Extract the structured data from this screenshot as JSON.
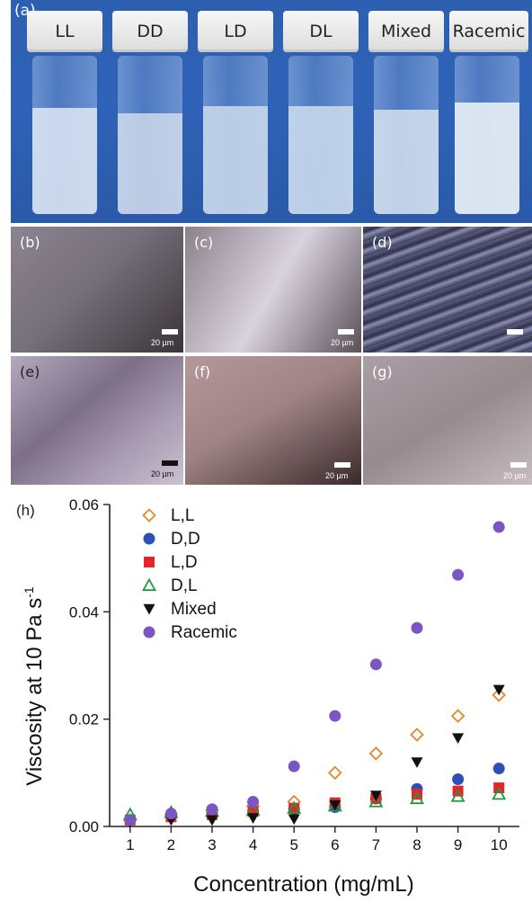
{
  "panel_a": {
    "label": "(a)",
    "vials": [
      {
        "name": "LL",
        "liquid": "#dfe8f4"
      },
      {
        "name": "DD",
        "liquid": "#d6e0ef"
      },
      {
        "name": "LD",
        "liquid": "#c5d6ea"
      },
      {
        "name": "DL",
        "liquid": "#c8d8ec"
      },
      {
        "name": "Mixed",
        "liquid": "#d5e0ef"
      },
      {
        "name": "Racemic",
        "liquid": "#e2eaf3"
      }
    ]
  },
  "micrographs": [
    {
      "label": "(b)",
      "scale": "20 µm",
      "bg": "#6f6772"
    },
    {
      "label": "(c)",
      "scale": "20 µm",
      "bg": "#7a7079"
    },
    {
      "label": "(d)",
      "scale": "",
      "bg": "#3e3f5c"
    },
    {
      "label": "(e)",
      "scale": "20 µm",
      "bg": "#8a7d94"
    },
    {
      "label": "(f)",
      "scale": "20 µm",
      "bg": "#8a6b6c"
    },
    {
      "label": "(g)",
      "scale": "20 µm",
      "bg": "#8a7d83"
    }
  ],
  "chart_data": {
    "type": "scatter",
    "panel_label": "(h)",
    "xlabel": "Concentration (mg/mL)",
    "ylabel": "Viscosity at 10 Pa s",
    "ylabel_sup": "-1",
    "xlim": [
      0.5,
      10.5
    ],
    "ylim": [
      0,
      0.06
    ],
    "xticks": [
      1,
      2,
      3,
      4,
      5,
      6,
      7,
      8,
      9,
      10
    ],
    "yticks": [
      "0.00",
      "0.02",
      "0.04",
      "0.06"
    ],
    "legend_position": "top-left",
    "series": [
      {
        "name": "L,L",
        "marker": "diamond-open",
        "color": "#e8872a",
        "x": [
          1,
          2,
          3,
          4,
          5,
          6,
          7,
          8,
          9,
          10
        ],
        "y": [
          0.0012,
          0.0022,
          0.003,
          0.0038,
          0.0046,
          0.01,
          0.0136,
          0.0171,
          0.0206,
          0.0245
        ]
      },
      {
        "name": "D,D",
        "marker": "circle",
        "color": "#2e4fb5",
        "x": [
          1,
          2,
          3,
          4,
          5,
          6,
          7,
          8,
          9,
          10
        ],
        "y": [
          0.0012,
          0.002,
          0.0024,
          0.0028,
          0.0032,
          0.0036,
          0.0052,
          0.007,
          0.0088,
          0.0108
        ]
      },
      {
        "name": "L,D",
        "marker": "square",
        "color": "#e8242a",
        "x": [
          1,
          2,
          3,
          4,
          5,
          6,
          7,
          8,
          9,
          10
        ],
        "y": [
          0.0012,
          0.0018,
          0.0022,
          0.0028,
          0.0034,
          0.0044,
          0.0052,
          0.006,
          0.0066,
          0.0072
        ]
      },
      {
        "name": "D,L",
        "marker": "triangle-open",
        "color": "#1f9a3a",
        "x": [
          1,
          2,
          3,
          4,
          5,
          6,
          7,
          8,
          9,
          10
        ],
        "y": [
          0.0022,
          0.0026,
          0.0028,
          0.003,
          0.0034,
          0.0038,
          0.0046,
          0.0052,
          0.0056,
          0.006
        ]
      },
      {
        "name": "Mixed",
        "marker": "triangle-down",
        "color": "#111111",
        "x": [
          1,
          2,
          3,
          4,
          5,
          6,
          7,
          8,
          9,
          10
        ],
        "y": [
          0.0008,
          0.0012,
          0.0012,
          0.0016,
          0.0014,
          0.004,
          0.0058,
          0.012,
          0.0165,
          0.0255
        ]
      },
      {
        "name": "Racemic",
        "marker": "circle",
        "color": "#7a56c4",
        "x": [
          1,
          2,
          3,
          4,
          5,
          6,
          7,
          8,
          9,
          10
        ],
        "y": [
          0.0012,
          0.0024,
          0.0032,
          0.0046,
          0.0112,
          0.0206,
          0.0302,
          0.037,
          0.0469,
          0.0558
        ]
      }
    ]
  }
}
